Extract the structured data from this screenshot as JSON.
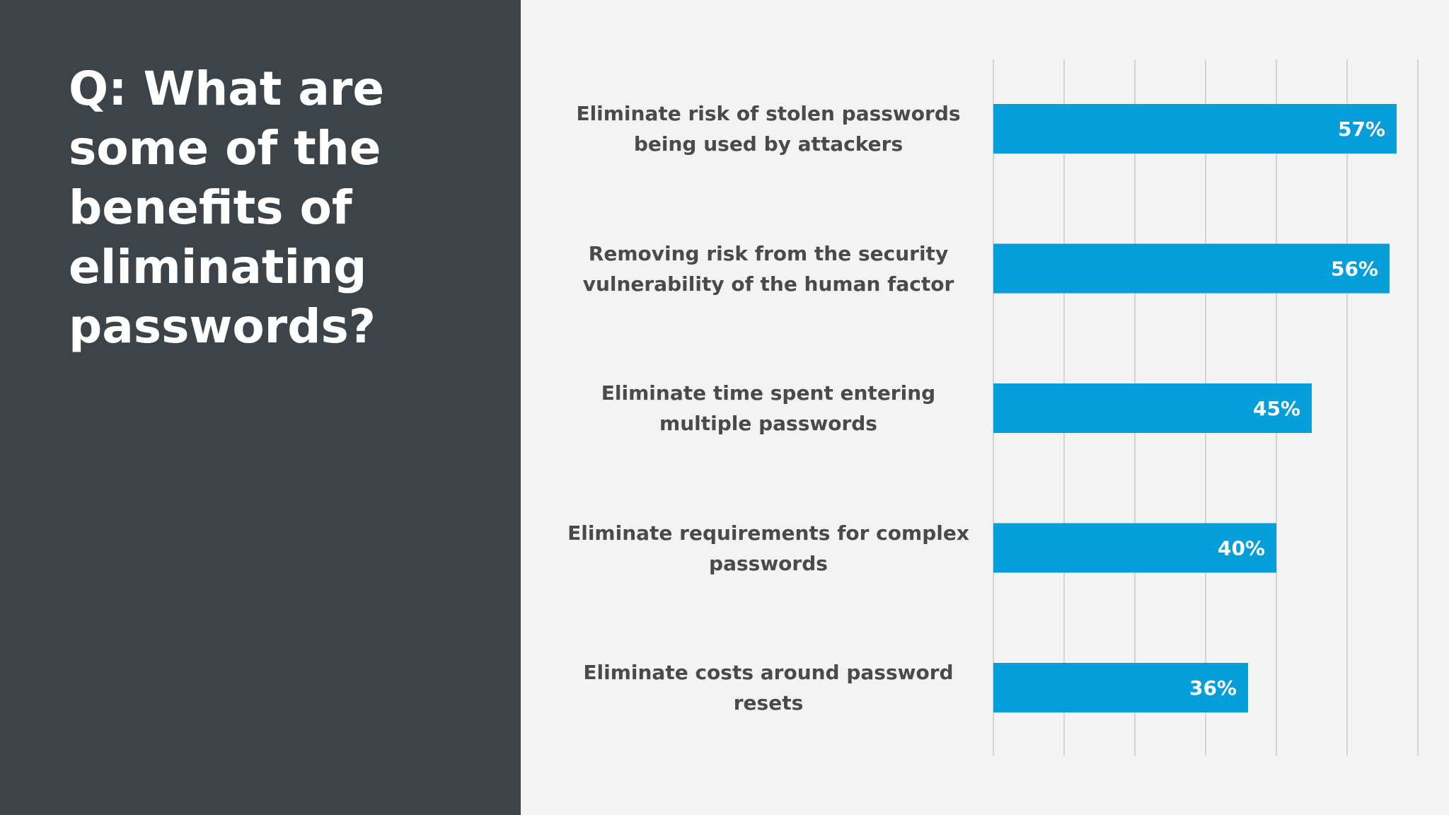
{
  "question": "Q: What are some of the benefits of eliminating passwords?",
  "colors": {
    "left_panel": "#3c444a",
    "background": "#f3f3f3",
    "bar": "#049fdb",
    "gridline": "#d4d4d4",
    "label_text": "#4a4a4a",
    "value_text": "#ffffff"
  },
  "chart_data": {
    "type": "bar",
    "orientation": "horizontal",
    "categories": [
      "Eliminate risk of stolen passwords being used by attackers",
      "Removing risk from the security vulnerability of the human factor",
      "Eliminate time spent entering multiple passwords",
      "Eliminate requirements for complex passwords",
      "Eliminate costs around password resets"
    ],
    "values": [
      57,
      56,
      45,
      40,
      36
    ],
    "data_labels": [
      "57%",
      "56%",
      "45%",
      "40%",
      "36%"
    ],
    "xlim": [
      0,
      60
    ],
    "grid": true,
    "legend": "none"
  }
}
